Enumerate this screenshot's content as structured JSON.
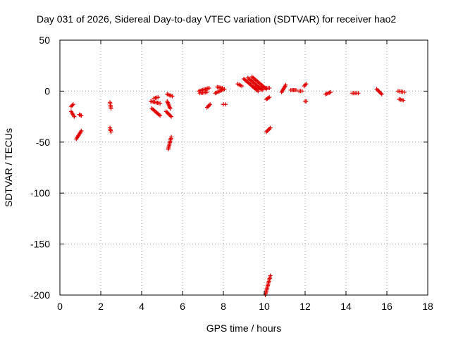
{
  "chart_data": {
    "type": "scatter",
    "title": "Day 031 of 2026, Sidereal Day-to-day VTEC variation (SDTVAR) for receiver hao2",
    "xlabel": "GPS time / hours",
    "ylabel": "SDTVAR / TECUs",
    "xlim": [
      0,
      18
    ],
    "ylim": [
      -200,
      50
    ],
    "xticks": [
      0,
      2,
      4,
      6,
      8,
      10,
      12,
      14,
      16,
      18
    ],
    "yticks": [
      -200,
      -150,
      -100,
      -50,
      0,
      50
    ],
    "xtick_labels": [
      "0",
      "2",
      "4",
      "6",
      "8",
      "10",
      "12",
      "14",
      "16",
      "18"
    ],
    "ytick_labels": [
      "-200",
      "-150",
      "-100",
      "-50",
      "0",
      "50"
    ],
    "grid": true,
    "marker": "+",
    "color": "#e00000",
    "segments": [
      {
        "x": [
          0.55,
          0.65
        ],
        "y": [
          -15,
          -13
        ]
      },
      {
        "x": [
          0.55,
          0.7
        ],
        "y": [
          -20,
          -25
        ]
      },
      {
        "x": [
          0.95,
          1.05
        ],
        "y": [
          -23,
          -24
        ]
      },
      {
        "x": [
          0.8,
          1.05
        ],
        "y": [
          -47,
          -39
        ]
      },
      {
        "x": [
          2.45,
          2.5
        ],
        "y": [
          -11,
          -17
        ]
      },
      {
        "x": [
          2.45,
          2.5
        ],
        "y": [
          -36,
          -40
        ]
      },
      {
        "x": [
          4.45,
          4.9
        ],
        "y": [
          -10,
          -12
        ]
      },
      {
        "x": [
          4.5,
          4.9
        ],
        "y": [
          -17,
          -24
        ]
      },
      {
        "x": [
          4.6,
          4.8
        ],
        "y": [
          -7,
          -6
        ]
      },
      {
        "x": [
          5.25,
          5.5
        ],
        "y": [
          -3,
          -5
        ]
      },
      {
        "x": [
          5.2,
          5.45
        ],
        "y": [
          -20,
          -25
        ]
      },
      {
        "x": [
          5.25,
          5.4
        ],
        "y": [
          -10,
          -17
        ]
      },
      {
        "x": [
          5.3,
          5.45
        ],
        "y": [
          -57,
          -45
        ]
      },
      {
        "x": [
          6.8,
          7.3
        ],
        "y": [
          0,
          3
        ]
      },
      {
        "x": [
          6.85,
          7.2
        ],
        "y": [
          -2,
          -1
        ]
      },
      {
        "x": [
          7.2,
          7.35
        ],
        "y": [
          -16,
          -13
        ]
      },
      {
        "x": [
          7.6,
          8.05
        ],
        "y": [
          -2,
          2
        ]
      },
      {
        "x": [
          7.7,
          7.95
        ],
        "y": [
          4,
          3
        ]
      },
      {
        "x": [
          8.0,
          8.1
        ],
        "y": [
          -13,
          -13
        ]
      },
      {
        "x": [
          8.7,
          8.9
        ],
        "y": [
          7,
          5
        ]
      },
      {
        "x": [
          9.0,
          9.7
        ],
        "y": [
          12,
          0
        ]
      },
      {
        "x": [
          9.2,
          9.9
        ],
        "y": [
          13,
          1
        ]
      },
      {
        "x": [
          9.4,
          10.1
        ],
        "y": [
          14,
          2
        ]
      },
      {
        "x": [
          9.5,
          10.25
        ],
        "y": [
          3,
          3
        ]
      },
      {
        "x": [
          10.1,
          10.25
        ],
        "y": [
          -8,
          -6
        ]
      },
      {
        "x": [
          10.1,
          10.3
        ],
        "y": [
          -40,
          -36
        ]
      },
      {
        "x": [
          10.05,
          10.3
        ],
        "y": [
          -200,
          -181
        ]
      },
      {
        "x": [
          10.85,
          11.05
        ],
        "y": [
          -1,
          6
        ]
      },
      {
        "x": [
          11.3,
          11.55
        ],
        "y": [
          1,
          1
        ]
      },
      {
        "x": [
          11.7,
          11.85
        ],
        "y": [
          0,
          0
        ]
      },
      {
        "x": [
          11.95,
          12.05
        ],
        "y": [
          5,
          7
        ]
      },
      {
        "x": [
          12.0,
          12.05
        ],
        "y": [
          -10,
          -10
        ]
      },
      {
        "x": [
          13.0,
          13.25
        ],
        "y": [
          -3,
          -1
        ]
      },
      {
        "x": [
          14.3,
          14.6
        ],
        "y": [
          -2,
          -2
        ]
      },
      {
        "x": [
          15.5,
          15.75
        ],
        "y": [
          2,
          -3
        ]
      },
      {
        "x": [
          16.55,
          16.85
        ],
        "y": [
          0,
          -1
        ]
      },
      {
        "x": [
          16.6,
          16.8
        ],
        "y": [
          -8,
          -9
        ]
      }
    ]
  }
}
